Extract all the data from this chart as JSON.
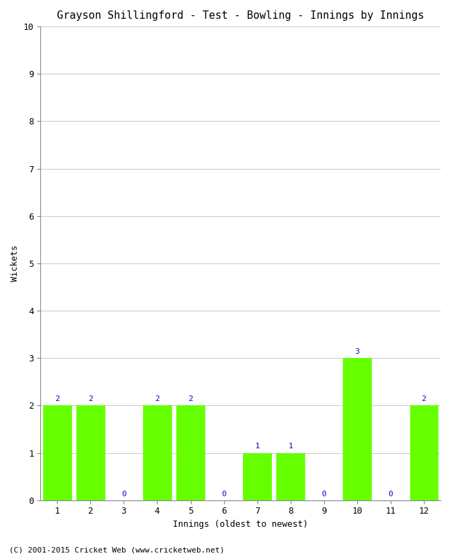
{
  "title": "Grayson Shillingford - Test - Bowling - Innings by Innings",
  "xlabel": "Innings (oldest to newest)",
  "ylabel": "Wickets",
  "categories": [
    "1",
    "2",
    "3",
    "4",
    "5",
    "6",
    "7",
    "8",
    "9",
    "10",
    "11",
    "12"
  ],
  "values": [
    2,
    2,
    0,
    2,
    2,
    0,
    1,
    1,
    0,
    3,
    0,
    2
  ],
  "bar_color": "#66ff00",
  "bar_edge_color": "#66ff00",
  "ylim": [
    0,
    10
  ],
  "yticks": [
    0,
    1,
    2,
    3,
    4,
    5,
    6,
    7,
    8,
    9,
    10
  ],
  "label_color": "#0000cc",
  "label_fontsize": 8,
  "title_fontsize": 11,
  "axis_label_fontsize": 9,
  "tick_fontsize": 9,
  "footer_text": "(C) 2001-2015 Cricket Web (www.cricketweb.net)",
  "footer_fontsize": 8,
  "background_color": "#ffffff",
  "grid_color": "#cccccc",
  "bar_width": 0.85
}
